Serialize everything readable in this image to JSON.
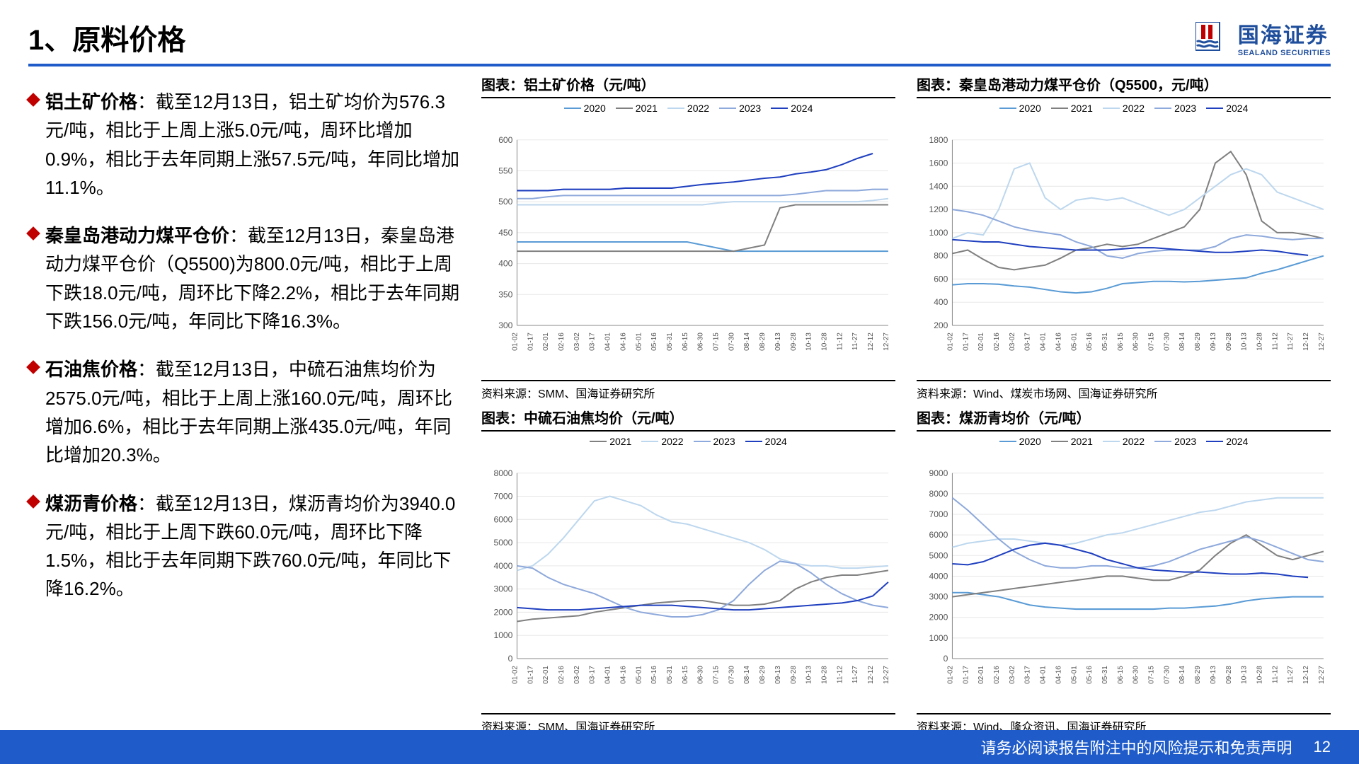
{
  "header": {
    "title": "1、原料价格",
    "logo_cn": "国海证券",
    "logo_en": "SEALAND SECURITIES"
  },
  "bullets": [
    {
      "label": "铝土矿价格",
      "text": "：截至12月13日，铝土矿均价为576.3元/吨，相比于上周上涨5.0元/吨，周环比增加0.9%，相比于去年同期上涨57.5元/吨，年同比增加11.1%。"
    },
    {
      "label": "秦皇岛港动力煤平仓价",
      "text": "：截至12月13日，秦皇岛港动力煤平仓价（Q5500)为800.0元/吨，相比于上周下跌18.0元/吨，周环比下降2.2%，相比于去年同期下跌156.0元/吨，年同比下降16.3%。"
    },
    {
      "label": "石油焦价格",
      "text": "：截至12月13日，中硫石油焦均价为2575.0元/吨，相比于上周上涨160.0元/吨，周环比增加6.6%，相比于去年同期上涨435.0元/吨，年同比增加20.3%。"
    },
    {
      "label": "煤沥青价格",
      "text": "：截至12月13日，煤沥青均价为3940.0元/吨，相比于上周下跌60.0元/吨，周环比下降1.5%，相比于去年同期下跌760.0元/吨，年同比下降16.2%。"
    }
  ],
  "footer": {
    "disclaimer": "请务必阅读报告附注中的风险提示和免责声明",
    "page": "12"
  },
  "x_ticks": [
    "01-02",
    "01-17",
    "02-01",
    "02-16",
    "03-02",
    "03-17",
    "04-01",
    "04-16",
    "05-01",
    "05-16",
    "05-31",
    "06-15",
    "06-30",
    "07-15",
    "07-30",
    "08-14",
    "08-29",
    "09-13",
    "09-28",
    "10-13",
    "10-28",
    "11-12",
    "11-27",
    "12-12",
    "12-27"
  ],
  "colors": {
    "2020": "#5a9bd5",
    "2021": "#808080",
    "2022": "#bdd7ee",
    "2023": "#8ea9db",
    "2024": "#1f3fbf",
    "axis": "#888",
    "grid": "#e8e8e8",
    "tick_text": "#555"
  },
  "charts": [
    {
      "title": "图表：铝土矿价格（元/吨）",
      "source": "资料来源：SMM、国海证券研究所",
      "ylim": [
        300,
        600
      ],
      "ystep": 50,
      "series": [
        {
          "year": "2020",
          "color": "#5a9bd5",
          "data": [
            435,
            435,
            435,
            435,
            435,
            435,
            435,
            435,
            435,
            435,
            435,
            435,
            430,
            425,
            420,
            420,
            420,
            420,
            420,
            420,
            420,
            420,
            420,
            420,
            420
          ]
        },
        {
          "year": "2021",
          "color": "#808080",
          "data": [
            420,
            420,
            420,
            420,
            420,
            420,
            420,
            420,
            420,
            420,
            420,
            420,
            420,
            420,
            420,
            425,
            430,
            490,
            495,
            495,
            495,
            495,
            495,
            495,
            495
          ]
        },
        {
          "year": "2022",
          "color": "#bdd7ee",
          "data": [
            495,
            495,
            495,
            495,
            495,
            495,
            495,
            495,
            495,
            495,
            495,
            495,
            495,
            498,
            500,
            500,
            500,
            500,
            500,
            500,
            500,
            500,
            500,
            502,
            505
          ]
        },
        {
          "year": "2023",
          "color": "#8ea9db",
          "data": [
            505,
            505,
            508,
            510,
            510,
            510,
            510,
            510,
            510,
            510,
            510,
            510,
            510,
            510,
            510,
            510,
            510,
            510,
            512,
            515,
            518,
            518,
            518,
            520,
            520
          ]
        },
        {
          "year": "2024",
          "color": "#1f3fbf",
          "data": [
            518,
            518,
            518,
            520,
            520,
            520,
            520,
            522,
            522,
            522,
            522,
            525,
            528,
            530,
            532,
            535,
            538,
            540,
            545,
            548,
            552,
            560,
            570,
            578,
            null
          ]
        }
      ]
    },
    {
      "title": "图表：秦皇岛港动力煤平仓价（Q5500，元/吨）",
      "source": "资料来源：Wind、煤炭市场网、国海证券研究所",
      "ylim": [
        200,
        1800
      ],
      "ystep": 200,
      "series": [
        {
          "year": "2020",
          "color": "#5a9bd5",
          "data": [
            550,
            560,
            560,
            555,
            540,
            530,
            510,
            490,
            480,
            490,
            520,
            560,
            570,
            580,
            580,
            575,
            580,
            590,
            600,
            610,
            650,
            680,
            720,
            760,
            800
          ]
        },
        {
          "year": "2021",
          "color": "#808080",
          "data": [
            820,
            850,
            770,
            700,
            680,
            700,
            720,
            780,
            850,
            870,
            900,
            880,
            900,
            950,
            1000,
            1050,
            1200,
            1600,
            1700,
            1500,
            1100,
            1000,
            1000,
            980,
            950
          ]
        },
        {
          "year": "2022",
          "color": "#bdd7ee",
          "data": [
            950,
            1000,
            980,
            1200,
            1550,
            1600,
            1300,
            1200,
            1280,
            1300,
            1280,
            1300,
            1250,
            1200,
            1150,
            1200,
            1300,
            1400,
            1500,
            1550,
            1500,
            1350,
            1300,
            1250,
            1200
          ]
        },
        {
          "year": "2023",
          "color": "#8ea9db",
          "data": [
            1200,
            1180,
            1150,
            1100,
            1050,
            1020,
            1000,
            980,
            920,
            880,
            800,
            780,
            820,
            840,
            850,
            850,
            850,
            880,
            950,
            980,
            970,
            950,
            940,
            950,
            950
          ]
        },
        {
          "year": "2024",
          "color": "#1f3fbf",
          "data": [
            940,
            930,
            920,
            920,
            900,
            880,
            870,
            860,
            850,
            850,
            850,
            860,
            870,
            870,
            860,
            850,
            840,
            830,
            830,
            840,
            850,
            840,
            820,
            805,
            null
          ]
        }
      ]
    },
    {
      "title": "图表：中硫石油焦均价（元/吨）",
      "source": "资料来源：SMM、国海证券研究所",
      "ylim": [
        0,
        8000
      ],
      "ystep": 1000,
      "series": [
        {
          "year": "2021",
          "color": "#808080",
          "data": [
            1600,
            1700,
            1750,
            1800,
            1850,
            2000,
            2100,
            2200,
            2300,
            2400,
            2450,
            2500,
            2500,
            2400,
            2300,
            2300,
            2350,
            2500,
            3000,
            3300,
            3500,
            3600,
            3600,
            3700,
            3800
          ]
        },
        {
          "year": "2022",
          "color": "#bdd7ee",
          "data": [
            3800,
            4000,
            4500,
            5200,
            6000,
            6800,
            7000,
            6800,
            6600,
            6200,
            5900,
            5800,
            5600,
            5400,
            5200,
            5000,
            4700,
            4300,
            4100,
            4000,
            4000,
            3900,
            3900,
            3950,
            4000
          ]
        },
        {
          "year": "2023",
          "color": "#8ea9db",
          "data": [
            4000,
            3900,
            3500,
            3200,
            3000,
            2800,
            2500,
            2200,
            2000,
            1900,
            1800,
            1800,
            1900,
            2100,
            2500,
            3200,
            3800,
            4200,
            4100,
            3700,
            3200,
            2800,
            2500,
            2300,
            2200
          ]
        },
        {
          "year": "2024",
          "color": "#1f3fbf",
          "data": [
            2200,
            2150,
            2100,
            2100,
            2100,
            2150,
            2200,
            2250,
            2300,
            2300,
            2300,
            2250,
            2200,
            2150,
            2100,
            2100,
            2150,
            2200,
            2250,
            2300,
            2350,
            2400,
            2500,
            2700,
            3300
          ]
        }
      ]
    },
    {
      "title": "图表：煤沥青均价（元/吨）",
      "source": "资料来源：Wind、隆众资讯、国海证券研究所",
      "ylim": [
        0,
        9000
      ],
      "ystep": 1000,
      "series": [
        {
          "year": "2020",
          "color": "#5a9bd5",
          "data": [
            3200,
            3200,
            3100,
            3000,
            2800,
            2600,
            2500,
            2450,
            2400,
            2400,
            2400,
            2400,
            2400,
            2400,
            2450,
            2450,
            2500,
            2550,
            2650,
            2800,
            2900,
            2950,
            3000,
            3000,
            3000
          ]
        },
        {
          "year": "2021",
          "color": "#808080",
          "data": [
            3000,
            3100,
            3200,
            3300,
            3400,
            3500,
            3600,
            3700,
            3800,
            3900,
            4000,
            4000,
            3900,
            3800,
            3800,
            4000,
            4300,
            5000,
            5600,
            6000,
            5500,
            5000,
            4800,
            5000,
            5200
          ]
        },
        {
          "year": "2022",
          "color": "#bdd7ee",
          "data": [
            5400,
            5600,
            5700,
            5800,
            5800,
            5700,
            5600,
            5500,
            5600,
            5800,
            6000,
            6100,
            6300,
            6500,
            6700,
            6900,
            7100,
            7200,
            7400,
            7600,
            7700,
            7800,
            7800,
            7800,
            7800
          ]
        },
        {
          "year": "2023",
          "color": "#8ea9db",
          "data": [
            7800,
            7200,
            6500,
            5800,
            5200,
            4800,
            4500,
            4400,
            4400,
            4500,
            4500,
            4400,
            4400,
            4500,
            4700,
            5000,
            5300,
            5500,
            5700,
            5900,
            5700,
            5400,
            5100,
            4800,
            4700
          ]
        },
        {
          "year": "2024",
          "color": "#1f3fbf",
          "data": [
            4600,
            4550,
            4700,
            5000,
            5300,
            5500,
            5600,
            5500,
            5300,
            5100,
            4800,
            4600,
            4400,
            4300,
            4250,
            4200,
            4200,
            4150,
            4100,
            4100,
            4150,
            4100,
            4000,
            3940,
            null
          ]
        }
      ]
    }
  ]
}
